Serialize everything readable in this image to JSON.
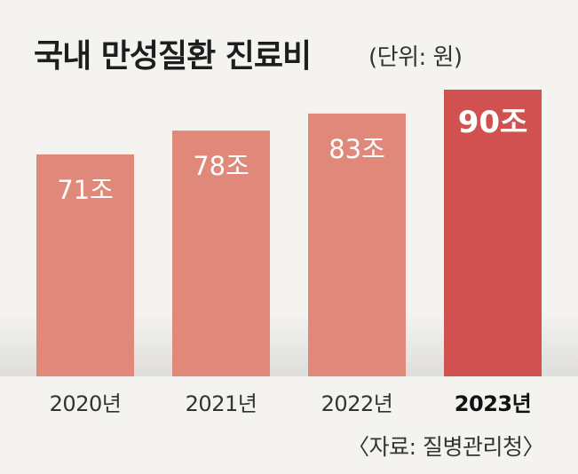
{
  "chart_data": {
    "type": "bar",
    "title": "국내 만성질환 진료비",
    "unit_label": "(단위: 원)",
    "categories": [
      "2020년",
      "2021년",
      "2022년",
      "2023년"
    ],
    "values": [
      71,
      78,
      83,
      90
    ],
    "value_labels": [
      "71조",
      "78조",
      "83조",
      "90조"
    ],
    "highlight_index": 3,
    "colors": {
      "bar": "#e0897b",
      "highlight": "#d0514f",
      "label": "#ffffff"
    },
    "source": "〈자료: 질병관리청〉",
    "legend": "none",
    "grid": false
  }
}
